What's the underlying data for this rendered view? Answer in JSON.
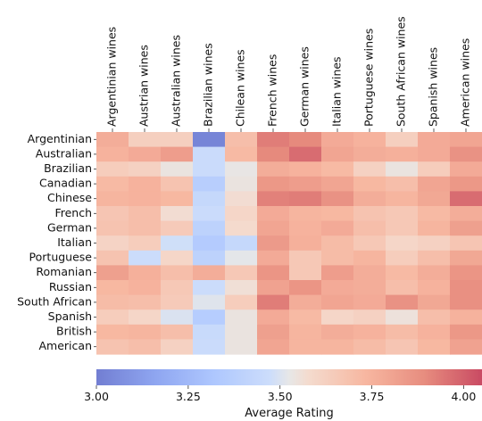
{
  "chart_data": {
    "type": "heatmap",
    "title": "",
    "xlabel": "",
    "ylabel": "",
    "columns": [
      "Argentinian wines",
      "Austrian wines",
      "Australian wines",
      "Brazilian wines",
      "Chilean wines",
      "French wines",
      "German wines",
      "Italian wines",
      "Portuguese wines",
      "South African wines",
      "Spanish wines",
      "American wines"
    ],
    "rows": [
      "Argentinian",
      "Australian",
      "Brazilian",
      "Canadian",
      "Chinese",
      "French",
      "German",
      "Italian",
      "Portuguese",
      "Romanian",
      "Russian",
      "South African",
      "Spanish",
      "British",
      "American"
    ],
    "values": [
      [
        3.77,
        3.63,
        3.63,
        3.03,
        3.7,
        3.93,
        3.9,
        3.78,
        3.75,
        3.63,
        3.78,
        3.8
      ],
      [
        3.75,
        3.78,
        3.83,
        3.46,
        3.72,
        3.9,
        3.97,
        3.8,
        3.77,
        3.76,
        3.78,
        3.87
      ],
      [
        3.64,
        3.62,
        3.54,
        3.46,
        3.53,
        3.77,
        3.75,
        3.72,
        3.62,
        3.54,
        3.64,
        3.78
      ],
      [
        3.72,
        3.75,
        3.68,
        3.37,
        3.54,
        3.85,
        3.83,
        3.8,
        3.73,
        3.7,
        3.8,
        3.85
      ],
      [
        3.74,
        3.75,
        3.73,
        3.44,
        3.57,
        3.92,
        3.93,
        3.87,
        3.77,
        3.74,
        3.79,
        3.97
      ],
      [
        3.67,
        3.7,
        3.57,
        3.46,
        3.6,
        3.78,
        3.74,
        3.73,
        3.68,
        3.66,
        3.72,
        3.77
      ],
      [
        3.68,
        3.7,
        3.65,
        3.4,
        3.58,
        3.8,
        3.75,
        3.78,
        3.7,
        3.66,
        3.74,
        3.82
      ],
      [
        3.61,
        3.64,
        3.48,
        3.35,
        3.44,
        3.84,
        3.76,
        3.71,
        3.66,
        3.6,
        3.62,
        3.67
      ],
      [
        3.68,
        3.47,
        3.6,
        3.4,
        3.52,
        3.78,
        3.66,
        3.71,
        3.74,
        3.64,
        3.7,
        3.79
      ],
      [
        3.82,
        3.76,
        3.7,
        3.77,
        3.66,
        3.86,
        3.66,
        3.83,
        3.77,
        3.72,
        3.77,
        3.86
      ],
      [
        3.73,
        3.75,
        3.66,
        3.47,
        3.56,
        3.81,
        3.86,
        3.78,
        3.77,
        3.7,
        3.75,
        3.88
      ],
      [
        3.71,
        3.7,
        3.65,
        3.51,
        3.64,
        3.93,
        3.77,
        3.8,
        3.78,
        3.87,
        3.79,
        3.88
      ],
      [
        3.64,
        3.6,
        3.5,
        3.36,
        3.54,
        3.78,
        3.72,
        3.6,
        3.62,
        3.55,
        3.7,
        3.75
      ],
      [
        3.73,
        3.74,
        3.7,
        3.45,
        3.54,
        3.82,
        3.74,
        3.77,
        3.75,
        3.71,
        3.75,
        3.85
      ],
      [
        3.68,
        3.7,
        3.62,
        3.46,
        3.54,
        3.8,
        3.74,
        3.74,
        3.71,
        3.67,
        3.73,
        3.81
      ]
    ],
    "colorbar": {
      "label": "Average Rating",
      "range": [
        3.0,
        4.05
      ],
      "ticks": [
        3.0,
        3.25,
        3.5,
        3.75,
        4.0
      ],
      "tick_labels": [
        "3.00",
        "3.25",
        "3.50",
        "3.75",
        "4.00"
      ],
      "cmap": "coolwarm",
      "placement": "bottom"
    },
    "grid": false,
    "column_label_position": "top"
  }
}
